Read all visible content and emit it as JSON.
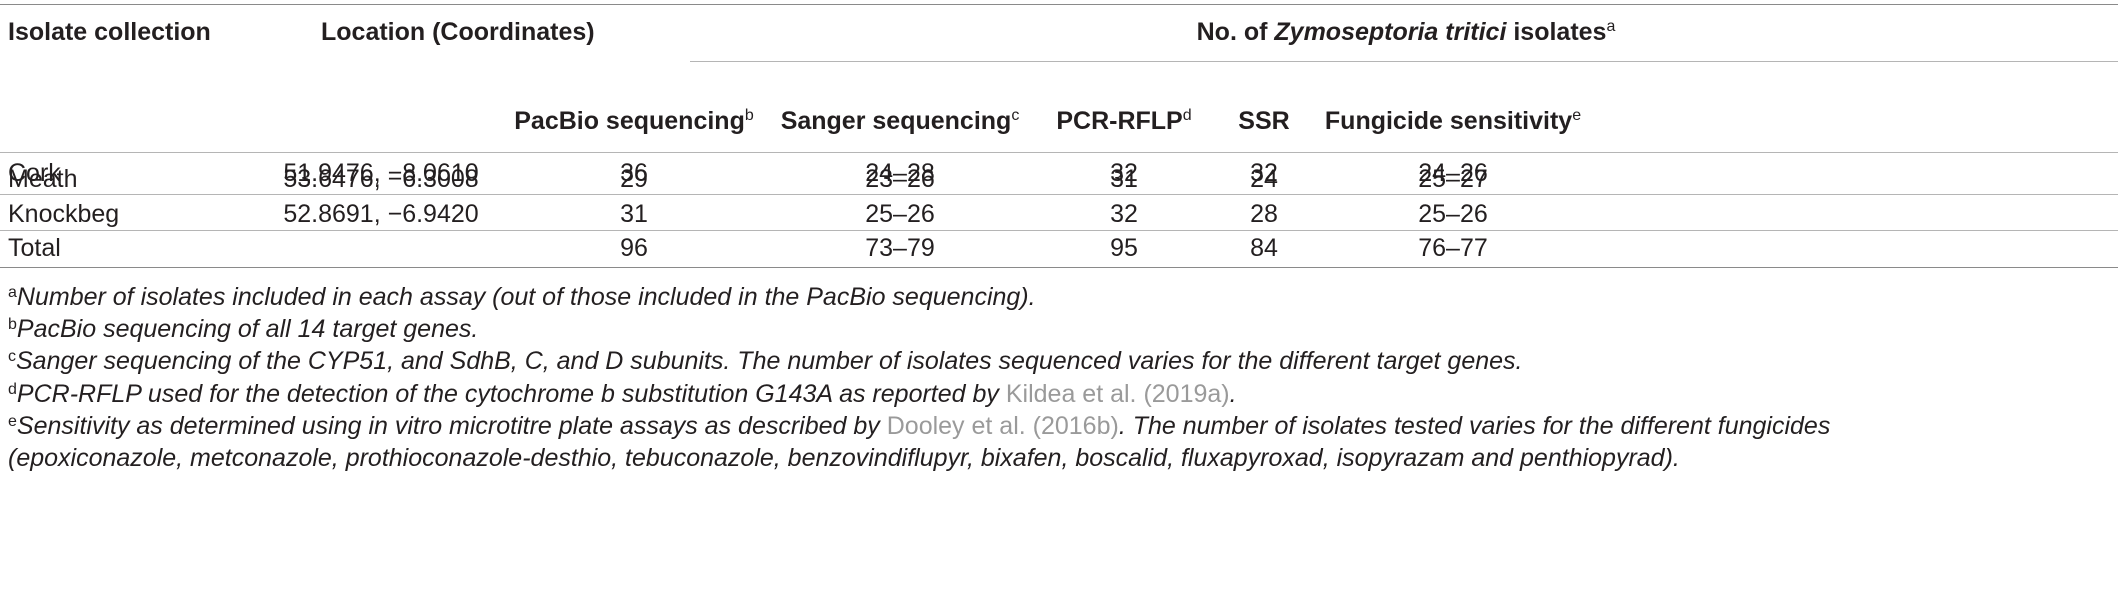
{
  "header": {
    "col_collection": "Isolate collection",
    "col_location": "Location (Coordinates)",
    "group_prefix": "No. of ",
    "group_species": "Zymoseptoria tritici",
    "group_suffix": " isolates",
    "group_sup": "a",
    "sub": [
      {
        "label": "PacBio sequencing",
        "sup": "b"
      },
      {
        "label": "Sanger sequencing",
        "sup": "c"
      },
      {
        "label": "PCR-RFLP",
        "sup": "d"
      },
      {
        "label": "SSR",
        "sup": ""
      },
      {
        "label": "Fungicide sensitivity",
        "sup": "e"
      }
    ]
  },
  "rows": [
    {
      "collection": "Cork",
      "location": "51.9476, −8.0610",
      "pacbio": "36",
      "sanger": "24–28",
      "pcr": "32",
      "ssr": "32",
      "fungicide": "24–26"
    },
    {
      "collection": "Meath",
      "location": "53.6476, −6.3008",
      "pacbio": "29",
      "sanger": "23–26",
      "pcr": "31",
      "ssr": "24",
      "fungicide": "25–27"
    },
    {
      "collection": "Knockbeg",
      "location": "52.8691, −6.9420",
      "pacbio": "31",
      "sanger": "25–26",
      "pcr": "32",
      "ssr": "28",
      "fungicide": "25–26"
    },
    {
      "collection": "Total",
      "location": "",
      "pacbio": "96",
      "sanger": "73–79",
      "pcr": "95",
      "ssr": "84",
      "fungicide": "76–77"
    }
  ],
  "footnotes": [
    {
      "mark": "a",
      "text": "Number of isolates included in each assay (out of those included in the PacBio sequencing)."
    },
    {
      "mark": "b",
      "text": "PacBio sequencing of all 14 target genes."
    },
    {
      "mark": "c",
      "text": "Sanger sequencing of the CYP51, and SdhB, C, and D subunits. The number of isolates sequenced varies for the different target genes."
    },
    {
      "mark": "d",
      "text": "PCR-RFLP used for the detection of the cytochrome b substitution G143A as reported by ",
      "ref": "Kildea et al. (2019a)",
      "after": "."
    },
    {
      "mark": "e",
      "text": "Sensitivity as determined using in vitro microtitre plate assays as described by ",
      "ref": "Dooley et al. (2016b)",
      "after": ". The number of isolates tested varies for the different fungicides",
      "line2": "(epoxiconazole, metconazole, prothioconazole-desthio, tebuconazole, benzovindiflupyr, bixafen, boscalid, fluxapyroxad, isopyrazam and penthiopyrad)."
    }
  ]
}
